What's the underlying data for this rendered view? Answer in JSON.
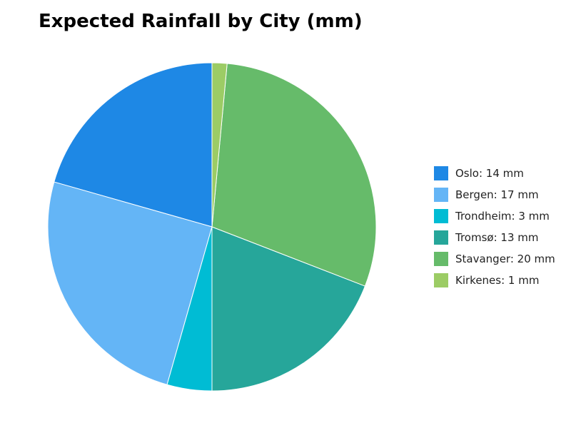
{
  "chart_data": {
    "type": "pie",
    "title": "Expected Rainfall by City (mm)",
    "unit": "mm",
    "categories": [
      "Oslo",
      "Bergen",
      "Trondheim",
      "Tromsø",
      "Stavanger",
      "Kirkenes"
    ],
    "values": [
      14,
      17,
      3,
      13,
      20,
      1
    ],
    "colors": [
      "#1e88e5",
      "#64b5f6",
      "#00bcd4",
      "#26a69a",
      "#66bb6a",
      "#9ccc65"
    ],
    "legend_labels": [
      "Oslo: 14 mm",
      "Bergen: 17 mm",
      "Trondheim: 3 mm",
      "Tromsø: 13 mm",
      "Stavanger: 20 mm",
      "Kirkenes: 1 mm"
    ],
    "legend_position": "right",
    "start": "top",
    "direction": "counterclockwise"
  }
}
